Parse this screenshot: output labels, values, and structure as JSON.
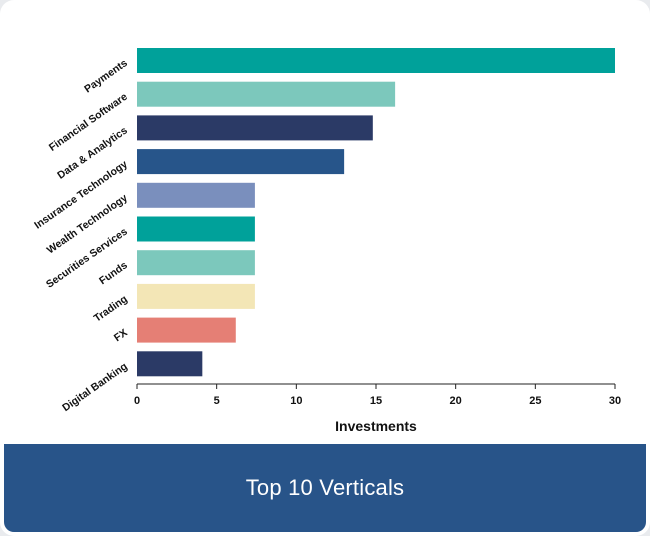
{
  "chart_data": {
    "type": "bar",
    "orientation": "horizontal",
    "categories": [
      "Payments",
      "Financial Software",
      "Data & Analytics",
      "Insurance Technology",
      "Wealth Technology",
      "Securities Services",
      "Funds",
      "Trading",
      "FX",
      "Digital Banking"
    ],
    "values": [
      30,
      16.2,
      14.8,
      13,
      7.4,
      7.4,
      7.4,
      7.4,
      6.2,
      4.1
    ],
    "colors": [
      "#00a19a",
      "#7cc8bc",
      "#2b3a66",
      "#27558a",
      "#7a8fbd",
      "#00a19a",
      "#7cc8bc",
      "#f3e6b6",
      "#e57f75",
      "#2b3a66"
    ],
    "xlabel": "Investments",
    "ylabel": "",
    "xlim": [
      0,
      30
    ],
    "xticks": [
      "0",
      "5",
      "10",
      "15",
      "20",
      "25",
      "30"
    ],
    "grid": false
  },
  "footer": {
    "title": "Top 10 Verticals"
  },
  "colors": {
    "footer_bg": "#285489",
    "axis": "#222222"
  }
}
